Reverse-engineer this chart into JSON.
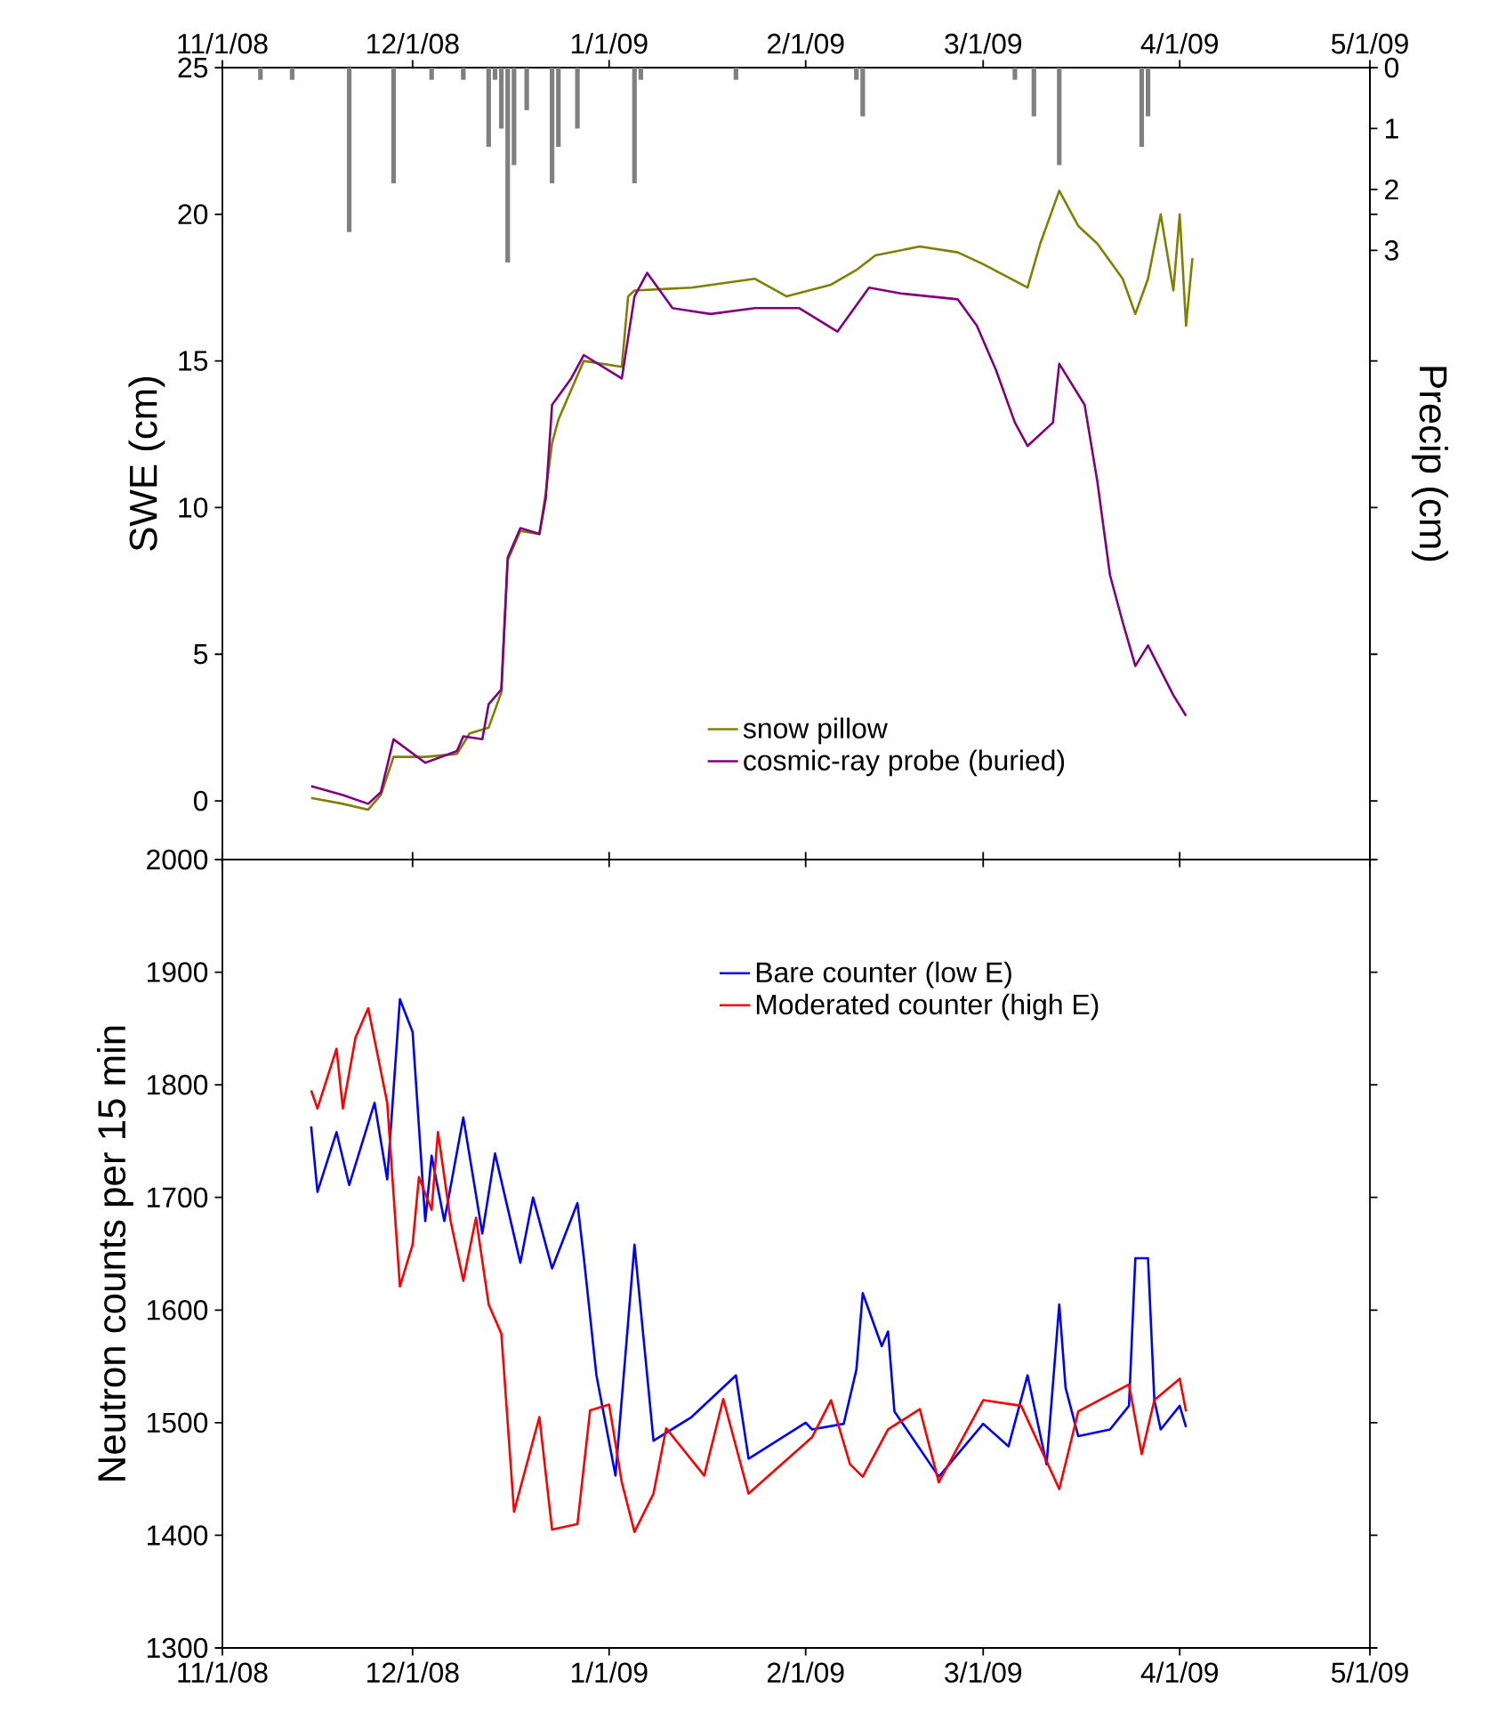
{
  "chart_data": [
    {
      "type": "line",
      "ylabel": "SWE (cm)",
      "y2label": "Precip (cm)",
      "legend": "bottom",
      "marker": "none",
      "xlim": [
        "2008-11-01",
        "2009-05-01"
      ],
      "xticks": [
        {
          "value": "2008-11-01",
          "label": "11/1/08"
        },
        {
          "value": "2008-12-01",
          "label": "12/1/08"
        },
        {
          "value": "2009-01-01",
          "label": "1/1/09"
        },
        {
          "value": "2009-02-01",
          "label": "2/1/09"
        },
        {
          "value": "2009-03-01",
          "label": "3/1/09"
        },
        {
          "value": "2009-04-01",
          "label": "4/1/09"
        },
        {
          "value": "2009-05-01",
          "label": "5/1/09"
        }
      ],
      "ylim": [
        -2,
        25
      ],
      "yticks": [
        0,
        5,
        10,
        15,
        20,
        25
      ],
      "y2lim": [
        13,
        0
      ],
      "y2ticks": [
        0,
        1,
        2,
        3
      ],
      "series": [
        {
          "name": "snow pillow",
          "color": "#808000",
          "x": [
            "2008-11-15",
            "2008-11-20",
            "2008-11-24",
            "2008-11-26",
            "2008-11-28",
            "2008-12-03",
            "2008-12-08",
            "2008-12-10",
            "2008-12-13",
            "2008-12-15",
            "2008-12-16",
            "2008-12-18",
            "2008-12-21",
            "2008-12-22",
            "2008-12-23",
            "2008-12-24",
            "2008-12-26",
            "2008-12-28",
            "2009-01-03",
            "2009-01-04",
            "2009-01-05",
            "2009-01-14",
            "2009-01-24",
            "2009-01-29",
            "2009-02-05",
            "2009-02-09",
            "2009-02-12",
            "2009-02-19",
            "2009-02-25",
            "2009-03-01",
            "2009-03-08",
            "2009-03-10",
            "2009-03-13",
            "2009-03-16",
            "2009-03-19",
            "2009-03-23",
            "2009-03-25",
            "2009-03-27",
            "2009-03-29",
            "2009-03-31",
            "2009-04-01",
            "2009-04-02",
            "2009-04-03"
          ],
          "values": [
            0.1,
            -0.1,
            -0.3,
            0.2,
            1.5,
            1.5,
            1.6,
            2.3,
            2.5,
            3.7,
            8.2,
            9.2,
            9.1,
            10.5,
            12.2,
            13.0,
            14.0,
            15.0,
            14.8,
            17.2,
            17.4,
            17.5,
            17.8,
            17.2,
            17.6,
            18.1,
            18.6,
            18.9,
            18.7,
            18.3,
            17.5,
            19.0,
            20.8,
            19.6,
            19.0,
            17.8,
            16.6,
            17.8,
            20.0,
            17.4,
            20.0,
            16.2,
            18.5
          ]
        },
        {
          "name": "cosmic-ray probe (buried)",
          "color": "#800080",
          "x": [
            "2008-11-15",
            "2008-11-20",
            "2008-11-24",
            "2008-11-26",
            "2008-11-28",
            "2008-12-03",
            "2008-12-08",
            "2008-12-09",
            "2008-12-12",
            "2008-12-13",
            "2008-12-15",
            "2008-12-16",
            "2008-12-18",
            "2008-12-21",
            "2008-12-22",
            "2008-12-23",
            "2008-12-26",
            "2008-12-28",
            "2009-01-03",
            "2009-01-05",
            "2009-01-07",
            "2009-01-11",
            "2009-01-17",
            "2009-01-24",
            "2009-01-31",
            "2009-02-06",
            "2009-02-11",
            "2009-02-16",
            "2009-02-25",
            "2009-02-28",
            "2009-03-03",
            "2009-03-06",
            "2009-03-08",
            "2009-03-12",
            "2009-03-13",
            "2009-03-17",
            "2009-03-19",
            "2009-03-21",
            "2009-03-23",
            "2009-03-25",
            "2009-03-27",
            "2009-03-31",
            "2009-04-02"
          ],
          "values": [
            0.5,
            0.2,
            -0.1,
            0.3,
            2.1,
            1.3,
            1.7,
            2.2,
            2.1,
            3.3,
            3.8,
            8.3,
            9.3,
            9.1,
            10.3,
            13.5,
            14.4,
            15.2,
            14.4,
            17.2,
            18.0,
            16.8,
            16.6,
            16.8,
            16.8,
            16.0,
            17.5,
            17.3,
            17.1,
            16.2,
            14.7,
            12.9,
            12.1,
            12.9,
            14.9,
            13.5,
            10.9,
            7.7,
            6.1,
            4.6,
            5.3,
            3.6,
            2.9
          ]
        },
        {
          "type": "bar",
          "axis": "y2",
          "color": "#808080",
          "x": [
            "2008-11-07",
            "2008-11-12",
            "2008-11-21",
            "2008-11-28",
            "2008-12-04",
            "2008-12-09",
            "2008-12-13",
            "2008-12-14",
            "2008-12-15",
            "2008-12-16",
            "2008-12-17",
            "2008-12-19",
            "2008-12-23",
            "2008-12-24",
            "2008-12-27",
            "2009-01-05",
            "2009-01-06",
            "2009-01-21",
            "2009-02-09",
            "2009-02-10",
            "2009-03-06",
            "2009-03-09",
            "2009-03-13",
            "2009-03-26",
            "2009-03-27"
          ],
          "values": [
            0.2,
            0.2,
            2.7,
            1.9,
            0.2,
            0.2,
            1.3,
            0.2,
            1.0,
            3.2,
            1.6,
            0.7,
            1.9,
            1.3,
            1.0,
            1.9,
            0.2,
            0.2,
            0.2,
            0.8,
            0.2,
            0.8,
            1.6,
            1.3,
            0.8
          ]
        }
      ]
    },
    {
      "type": "line",
      "ylabel": "Neutron counts per 15 min",
      "legend": "top",
      "marker": "none",
      "xlim": [
        "2008-11-01",
        "2009-05-01"
      ],
      "xticks": [
        {
          "value": "2008-11-01",
          "label": "11/1/08"
        },
        {
          "value": "2008-12-01",
          "label": "12/1/08"
        },
        {
          "value": "2009-01-01",
          "label": "1/1/09"
        },
        {
          "value": "2009-02-01",
          "label": "2/1/09"
        },
        {
          "value": "2009-03-01",
          "label": "3/1/09"
        },
        {
          "value": "2009-04-01",
          "label": "4/1/09"
        },
        {
          "value": "2009-05-01",
          "label": "5/1/09"
        }
      ],
      "ylim": [
        1300,
        2000
      ],
      "yticks": [
        1300,
        1400,
        1500,
        1600,
        1700,
        1800,
        1900,
        2000
      ],
      "series": [
        {
          "name": "Bare counter (low E)",
          "color": "#0000ff",
          "x": [
            "2008-11-15",
            "2008-11-16",
            "2008-11-19",
            "2008-11-21",
            "2008-11-25",
            "2008-11-27",
            "2008-11-29",
            "2008-12-01",
            "2008-12-03",
            "2008-12-04",
            "2008-12-06",
            "2008-12-09",
            "2008-12-12",
            "2008-12-14",
            "2008-12-18",
            "2008-12-20",
            "2008-12-23",
            "2008-12-27",
            "2008-12-28",
            "2008-12-30",
            "2009-01-02",
            "2009-01-05",
            "2009-01-08",
            "2009-01-14",
            "2009-01-21",
            "2009-01-23",
            "2009-02-01",
            "2009-02-02",
            "2009-02-07",
            "2009-02-09",
            "2009-02-10",
            "2009-02-13",
            "2009-02-14",
            "2009-02-15",
            "2009-02-22",
            "2009-03-01",
            "2009-03-05",
            "2009-03-08",
            "2009-03-11",
            "2009-03-13",
            "2009-03-14",
            "2009-03-16",
            "2009-03-21",
            "2009-03-24",
            "2009-03-25",
            "2009-03-27",
            "2009-03-28",
            "2009-03-29",
            "2009-04-01",
            "2009-04-02"
          ],
          "values": [
            1763,
            1705,
            1758,
            1711,
            1784,
            1716,
            1876,
            1847,
            1679,
            1737,
            1679,
            1771,
            1668,
            1739,
            1642,
            1700,
            1637,
            1695,
            1647,
            1542,
            1453,
            1658,
            1484,
            1505,
            1542,
            1468,
            1500,
            1494,
            1499,
            1547,
            1615,
            1568,
            1581,
            1510,
            1452,
            1499,
            1479,
            1542,
            1463,
            1605,
            1531,
            1488,
            1494,
            1515,
            1646,
            1646,
            1520,
            1494,
            1515,
            1496
          ]
        },
        {
          "name": "Moderated counter (high E)",
          "color": "#ff0000",
          "x": [
            "2008-11-15",
            "2008-11-16",
            "2008-11-19",
            "2008-11-20",
            "2008-11-22",
            "2008-11-24",
            "2008-11-27",
            "2008-11-29",
            "2008-12-01",
            "2008-12-02",
            "2008-12-04",
            "2008-12-05",
            "2008-12-07",
            "2008-12-09",
            "2008-12-11",
            "2008-12-13",
            "2008-12-15",
            "2008-12-17",
            "2008-12-21",
            "2008-12-23",
            "2008-12-27",
            "2008-12-29",
            "2009-01-01",
            "2009-01-03",
            "2009-01-05",
            "2009-01-08",
            "2009-01-10",
            "2009-01-16",
            "2009-01-19",
            "2009-01-23",
            "2009-02-02",
            "2009-02-05",
            "2009-02-08",
            "2009-02-10",
            "2009-02-14",
            "2009-02-19",
            "2009-02-22",
            "2009-03-01",
            "2009-03-07",
            "2009-03-13",
            "2009-03-16",
            "2009-03-24",
            "2009-03-26",
            "2009-03-28",
            "2009-04-01",
            "2009-04-02"
          ],
          "values": [
            1795,
            1779,
            1832,
            1779,
            1842,
            1868,
            1784,
            1621,
            1658,
            1718,
            1689,
            1758,
            1679,
            1626,
            1682,
            1605,
            1579,
            1421,
            1505,
            1405,
            1410,
            1511,
            1516,
            1447,
            1403,
            1437,
            1495,
            1453,
            1521,
            1437,
            1487,
            1520,
            1463,
            1452,
            1494,
            1512,
            1447,
            1520,
            1515,
            1441,
            1510,
            1534,
            1472,
            1520,
            1539,
            1510
          ]
        }
      ]
    }
  ]
}
